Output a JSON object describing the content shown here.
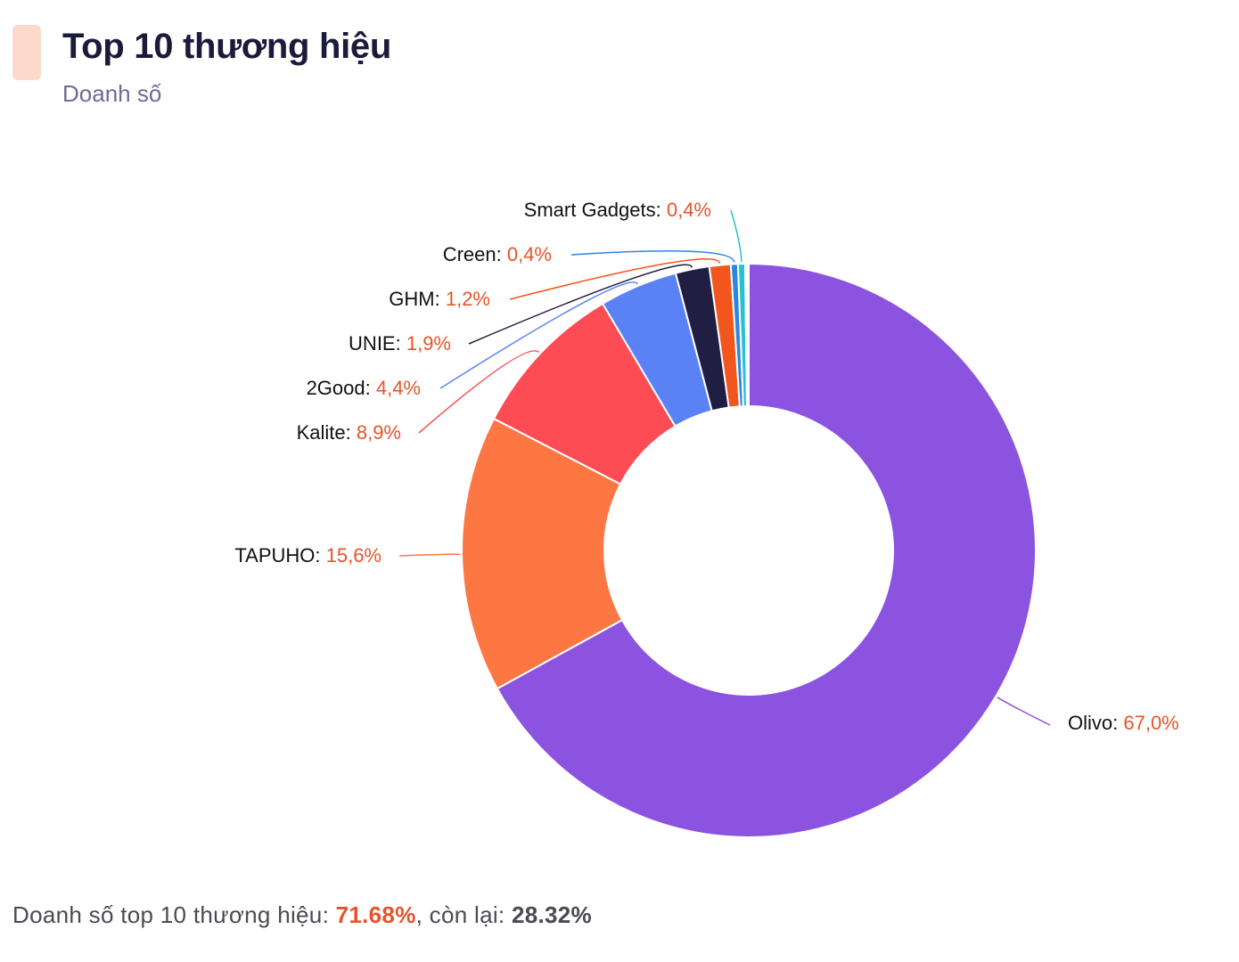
{
  "header": {
    "title": "Top 10 thương hiệu",
    "subtitle": "Doanh số"
  },
  "chart_data": {
    "type": "pie",
    "variant": "donut",
    "title": "Top 10 thương hiệu",
    "subtitle": "Doanh số",
    "slices": [
      {
        "label": "Olivo",
        "value": 67.0,
        "display": "67,0%",
        "color": "#8c53e0"
      },
      {
        "label": "TAPUHO",
        "value": 15.6,
        "display": "15,6%",
        "color": "#fd7743"
      },
      {
        "label": "Kalite",
        "value": 8.9,
        "display": "8,9%",
        "color": "#fd4c53"
      },
      {
        "label": "2Good",
        "value": 4.4,
        "display": "4,4%",
        "color": "#5b82f5"
      },
      {
        "label": "UNIE",
        "value": 1.9,
        "display": "1,9%",
        "color": "#211e43"
      },
      {
        "label": "GHM",
        "value": 1.2,
        "display": "1,2%",
        "color": "#f2561d"
      },
      {
        "label": "Creen",
        "value": 0.4,
        "display": "0,4%",
        "color": "#2a86e0"
      },
      {
        "label": "Smart Gadgets",
        "value": 0.4,
        "display": "0,4%",
        "color": "#27c1cf"
      },
      {
        "value": 0.1,
        "color": "#a8e6a0"
      },
      {
        "value": 0.1,
        "color": "#f7c948"
      }
    ],
    "label_value_color": "#e8532a",
    "label_name_color": "#111111",
    "legend": "none"
  },
  "footer": {
    "prefix": "Doanh số top 10 thương hiệu: ",
    "top10_value": "71.68%",
    "middle": ", còn lại: ",
    "rest_value": "28.32%",
    "highlight_color": "#e8532a"
  }
}
